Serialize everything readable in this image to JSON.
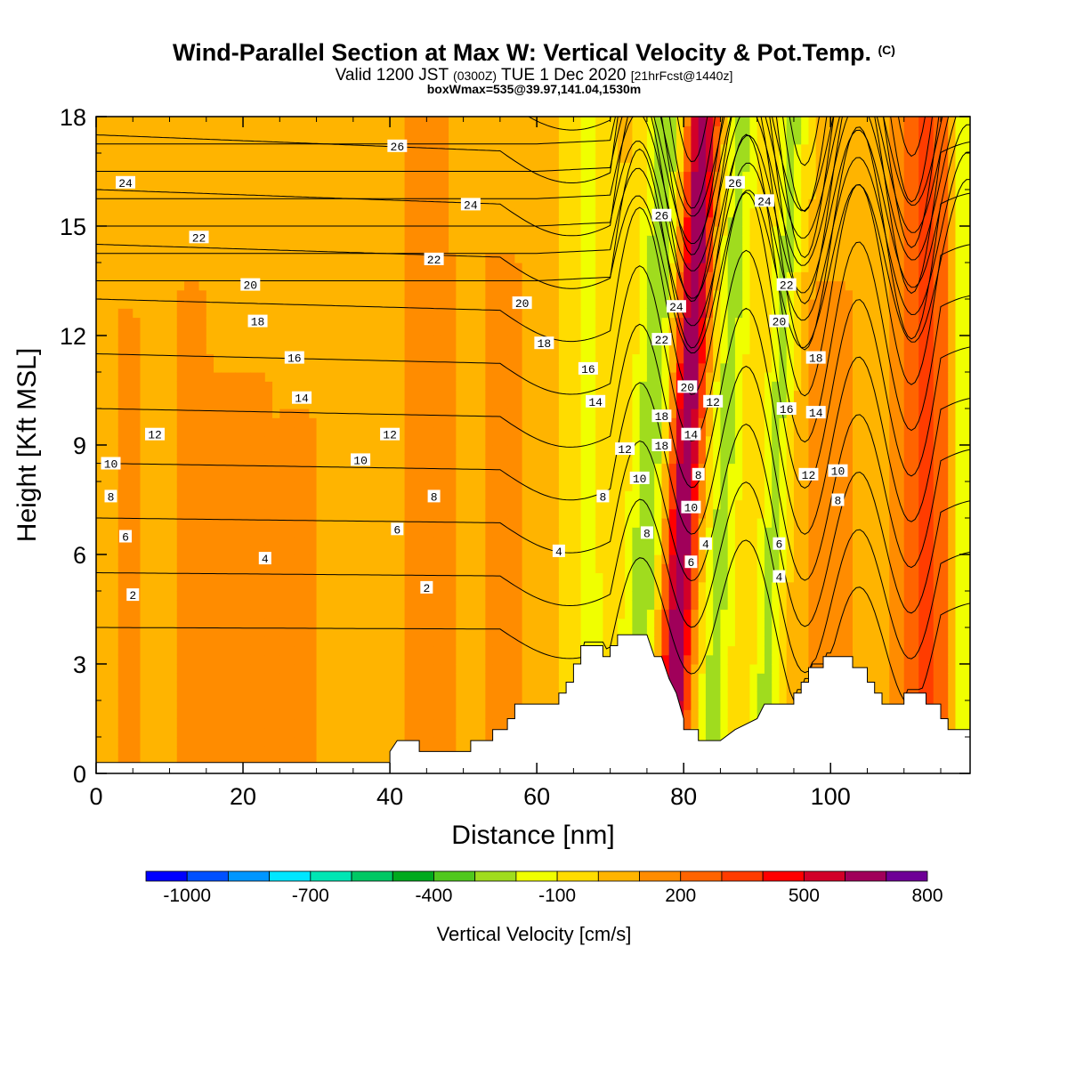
{
  "header": {
    "title": "Wind-Parallel Section at Max W: Vertical Velocity & Pot.Temp.",
    "copyright": "(C)",
    "valid_prefix": "Valid 1200 JST",
    "valid_utc": "(0300Z)",
    "valid_date": "TUE 1 Dec 2020",
    "forecast_info": "[21hrFcst@1440z]",
    "boxwmax": "boxWmax=535@39.97,141.04,1530m"
  },
  "colorbar": {
    "label": "Vertical Velocity [cm/s]",
    "tick_labels": [
      "-1000",
      "-700",
      "-400",
      "-100",
      "200",
      "500",
      "800"
    ],
    "colors": [
      "#0000ff",
      "#0050ff",
      "#0096ff",
      "#00e6ff",
      "#00e6b4",
      "#00c864",
      "#00aa1e",
      "#50c81e",
      "#a0dc1e",
      "#f0ff00",
      "#ffdc00",
      "#ffb400",
      "#ff8c00",
      "#ff6400",
      "#ff3c00",
      "#ff0000",
      "#d20028",
      "#a0005a",
      "#6e0096"
    ]
  },
  "chart_data": {
    "type": "heatmap",
    "xlabel": "Distance [nm]",
    "ylabel": "Height [Kft MSL]",
    "xlim": [
      0,
      119
    ],
    "ylim": [
      0,
      18
    ],
    "x_ticks": [
      0,
      20,
      40,
      60,
      80,
      100
    ],
    "y_ticks": [
      0,
      3,
      6,
      9,
      12,
      15,
      18
    ],
    "fill_field": "vertical velocity [cm/s]",
    "contour_field": "potential temperature [C]",
    "contour_levels": [
      2,
      4,
      6,
      8,
      10,
      12,
      14,
      16,
      18,
      20,
      22,
      24,
      26
    ],
    "velocity_features": [
      {
        "x": 4,
        "width": 3,
        "top": 12.5,
        "w": 100
      },
      {
        "x": 13,
        "width": 4,
        "top": 13.2,
        "w": 100
      },
      {
        "x": 21,
        "width": 5,
        "top": 10.8,
        "w": 100
      },
      {
        "x": 28,
        "width": 3,
        "top": 9.6,
        "w": 100
      },
      {
        "x": 45,
        "width": 7,
        "top": 18,
        "w": 100
      },
      {
        "x": 56,
        "width": 4,
        "top": 14,
        "w": 100
      },
      {
        "x": 67,
        "width": 3,
        "top": 18,
        "w": -150
      },
      {
        "x": 76,
        "width": 3,
        "top": 18,
        "w": -300
      },
      {
        "x": 79.5,
        "width": 2,
        "top": 18,
        "w": 250
      },
      {
        "x": 81,
        "width": 2,
        "top": 18,
        "w": 535
      },
      {
        "x": 86,
        "width": 2.5,
        "top": 18,
        "w": -250
      },
      {
        "x": 93,
        "width": 2,
        "top": 18,
        "w": -250
      },
      {
        "x": 100,
        "width": 4,
        "top": 13,
        "w": 150
      },
      {
        "x": 113,
        "width": 4,
        "top": 18,
        "w": 300
      },
      {
        "x": 118,
        "width": 1.5,
        "top": 18,
        "w": -250
      }
    ],
    "terrain": [
      [
        0,
        0.3
      ],
      [
        40,
        0.3
      ],
      [
        40,
        0.6
      ],
      [
        41,
        0.9
      ],
      [
        44,
        0.9
      ],
      [
        44,
        0.6
      ],
      [
        51,
        0.6
      ],
      [
        51,
        0.9
      ],
      [
        54,
        0.9
      ],
      [
        54,
        1.2
      ],
      [
        56,
        1.2
      ],
      [
        56,
        1.5
      ],
      [
        57,
        1.5
      ],
      [
        57,
        1.9
      ],
      [
        63,
        1.9
      ],
      [
        63,
        2.2
      ],
      [
        64,
        2.2
      ],
      [
        64,
        2.5
      ],
      [
        65,
        2.5
      ],
      [
        65,
        3.0
      ],
      [
        66,
        3.0
      ],
      [
        66,
        3.5
      ],
      [
        69,
        3.5
      ],
      [
        69,
        3.2
      ],
      [
        70,
        3.2
      ],
      [
        70,
        3.5
      ],
      [
        71,
        3.5
      ],
      [
        71,
        3.8
      ],
      [
        75,
        3.8
      ],
      [
        76,
        3.2
      ],
      [
        77,
        3.2
      ],
      [
        78,
        2.6
      ],
      [
        79,
        2.2
      ],
      [
        80,
        1.5
      ],
      [
        80,
        1.2
      ],
      [
        82,
        1.2
      ],
      [
        82,
        0.9
      ],
      [
        85,
        0.9
      ],
      [
        87,
        1.2
      ],
      [
        90,
        1.5
      ],
      [
        91,
        1.9
      ],
      [
        95,
        1.9
      ],
      [
        95,
        2.2
      ],
      [
        96,
        2.2
      ],
      [
        96,
        2.5
      ],
      [
        97,
        2.5
      ],
      [
        97,
        2.9
      ],
      [
        99,
        2.9
      ],
      [
        99,
        3.2
      ],
      [
        103,
        3.2
      ],
      [
        103,
        2.9
      ],
      [
        105,
        2.9
      ],
      [
        105,
        2.5
      ],
      [
        106,
        2.5
      ],
      [
        106,
        2.2
      ],
      [
        107,
        2.2
      ],
      [
        107,
        1.9
      ],
      [
        110,
        1.9
      ],
      [
        110,
        2.2
      ],
      [
        113,
        2.2
      ],
      [
        113,
        1.9
      ],
      [
        115,
        1.9
      ],
      [
        115,
        1.5
      ],
      [
        116,
        1.5
      ],
      [
        116,
        1.2
      ],
      [
        119,
        1.2
      ]
    ],
    "contour_labels": [
      {
        "v": "26",
        "x": 41,
        "y": 17.2
      },
      {
        "v": "24",
        "x": 4,
        "y": 16.2
      },
      {
        "v": "24",
        "x": 51,
        "y": 15.6
      },
      {
        "v": "22",
        "x": 14,
        "y": 14.7
      },
      {
        "v": "22",
        "x": 46,
        "y": 14.1
      },
      {
        "v": "20",
        "x": 21,
        "y": 13.4
      },
      {
        "v": "20",
        "x": 58,
        "y": 12.9
      },
      {
        "v": "18",
        "x": 22,
        "y": 12.4
      },
      {
        "v": "18",
        "x": 61,
        "y": 11.8
      },
      {
        "v": "16",
        "x": 27,
        "y": 11.4
      },
      {
        "v": "16",
        "x": 67,
        "y": 11.1
      },
      {
        "v": "14",
        "x": 28,
        "y": 10.3
      },
      {
        "v": "14",
        "x": 68,
        "y": 10.2
      },
      {
        "v": "12",
        "x": 8,
        "y": 9.3
      },
      {
        "v": "12",
        "x": 40,
        "y": 9.3
      },
      {
        "v": "12",
        "x": 72,
        "y": 8.9
      },
      {
        "v": "10",
        "x": 2,
        "y": 8.5
      },
      {
        "v": "10",
        "x": 36,
        "y": 8.6
      },
      {
        "v": "10",
        "x": 74,
        "y": 8.1
      },
      {
        "v": "8",
        "x": 2,
        "y": 7.6
      },
      {
        "v": "8",
        "x": 46,
        "y": 7.6
      },
      {
        "v": "8",
        "x": 69,
        "y": 7.6
      },
      {
        "v": "8",
        "x": 75,
        "y": 6.6
      },
      {
        "v": "6",
        "x": 4,
        "y": 6.5
      },
      {
        "v": "6",
        "x": 41,
        "y": 6.7
      },
      {
        "v": "4",
        "x": 23,
        "y": 5.9
      },
      {
        "v": "4",
        "x": 63,
        "y": 6.1
      },
      {
        "v": "2",
        "x": 5,
        "y": 4.9
      },
      {
        "v": "2",
        "x": 45,
        "y": 5.1
      },
      {
        "v": "26",
        "x": 87,
        "y": 16.2
      },
      {
        "v": "24",
        "x": 91,
        "y": 15.7
      },
      {
        "v": "26",
        "x": 77,
        "y": 15.3
      },
      {
        "v": "24",
        "x": 79,
        "y": 12.8
      },
      {
        "v": "22",
        "x": 77,
        "y": 11.9
      },
      {
        "v": "22",
        "x": 94,
        "y": 13.4
      },
      {
        "v": "20",
        "x": 93,
        "y": 12.4
      },
      {
        "v": "20",
        "x": 80.5,
        "y": 10.6
      },
      {
        "v": "18",
        "x": 98,
        "y": 11.4
      },
      {
        "v": "18",
        "x": 77,
        "y": 9.8
      },
      {
        "v": "18",
        "x": 77,
        "y": 9.0
      },
      {
        "v": "14",
        "x": 81,
        "y": 9.3
      },
      {
        "v": "12",
        "x": 84,
        "y": 10.2
      },
      {
        "v": "16",
        "x": 94,
        "y": 10.0
      },
      {
        "v": "14",
        "x": 98,
        "y": 9.9
      },
      {
        "v": "12",
        "x": 97,
        "y": 8.2
      },
      {
        "v": "10",
        "x": 101,
        "y": 8.3
      },
      {
        "v": "8",
        "x": 82,
        "y": 8.2
      },
      {
        "v": "8",
        "x": 101,
        "y": 7.5
      },
      {
        "v": "10",
        "x": 81,
        "y": 7.3
      },
      {
        "v": "6",
        "x": 93,
        "y": 6.3
      },
      {
        "v": "4",
        "x": 83,
        "y": 6.3
      },
      {
        "v": "6",
        "x": 81,
        "y": 5.8
      },
      {
        "v": "4",
        "x": 93,
        "y": 5.4
      }
    ]
  }
}
